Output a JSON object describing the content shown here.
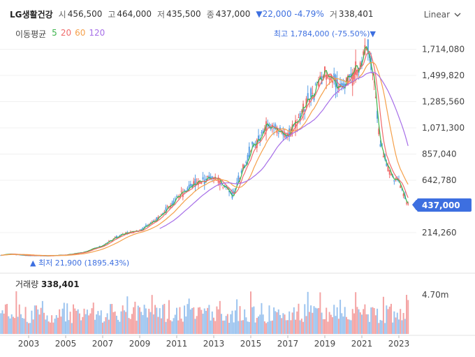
{
  "header": {
    "name": "LG생활건강",
    "open_label": "시",
    "open": "456,500",
    "high_label": "고",
    "high": "464,000",
    "low_label": "저",
    "low": "435,500",
    "close_label": "종",
    "close": "437,000",
    "change": "▼22,000 -4.79%",
    "volume_label": "거",
    "volume": "338,401"
  },
  "scale_select": {
    "label": "Linear"
  },
  "ma_legend": {
    "title": "이동평균",
    "items": [
      {
        "label": "5",
        "color": "#3cb44b"
      },
      {
        "label": "20",
        "color": "#f06a6a"
      },
      {
        "label": "60",
        "color": "#f5a04a"
      },
      {
        "label": "120",
        "color": "#a66ee8"
      }
    ]
  },
  "volume_panel": {
    "title": "거래량",
    "value": "338,401",
    "tick": "4.70m"
  },
  "annotations": {
    "high": "최고 1,784,000 (-75.50%)▼",
    "low": "▲ 최저 21,900 (1895.43%)",
    "last_price": "437,000"
  },
  "chart_data": {
    "type": "candlestick",
    "y_ticks": [
      "1,714,080",
      "1,499,820",
      "1,285,560",
      "1,071,300",
      "857,040",
      "642,780",
      "214,260"
    ],
    "y_tick_values": [
      1714080,
      1499820,
      1285560,
      1071300,
      857040,
      642780,
      214260
    ],
    "x_ticks": [
      "2003",
      "2005",
      "2007",
      "2009",
      "2011",
      "2013",
      "2015",
      "2017",
      "2019",
      "2021",
      "2023"
    ],
    "series_years": [
      2001.5,
      2002,
      2003,
      2004,
      2005,
      2006,
      2007,
      2008,
      2009,
      2010,
      2011,
      2012,
      2013,
      2014,
      2015,
      2016,
      2017,
      2018,
      2019,
      2020,
      2021,
      2021.3,
      2021.6,
      2022,
      2022.5,
      2023,
      2023.5
    ],
    "close_trend": [
      30000,
      40000,
      28000,
      25000,
      32000,
      55000,
      110000,
      200000,
      230000,
      330000,
      500000,
      620000,
      680000,
      520000,
      900000,
      1100000,
      1000000,
      1280000,
      1500000,
      1400000,
      1600000,
      1784000,
      1500000,
      950000,
      700000,
      620000,
      437000
    ],
    "high_year": 2021.3,
    "high_value": 1784000,
    "low_year": 2004.1,
    "low_value": 21900,
    "volume_max": 4700000
  },
  "colors": {
    "up": "#f06a6a",
    "down": "#5aa0e6",
    "price_tag": "#3d6fe0"
  }
}
